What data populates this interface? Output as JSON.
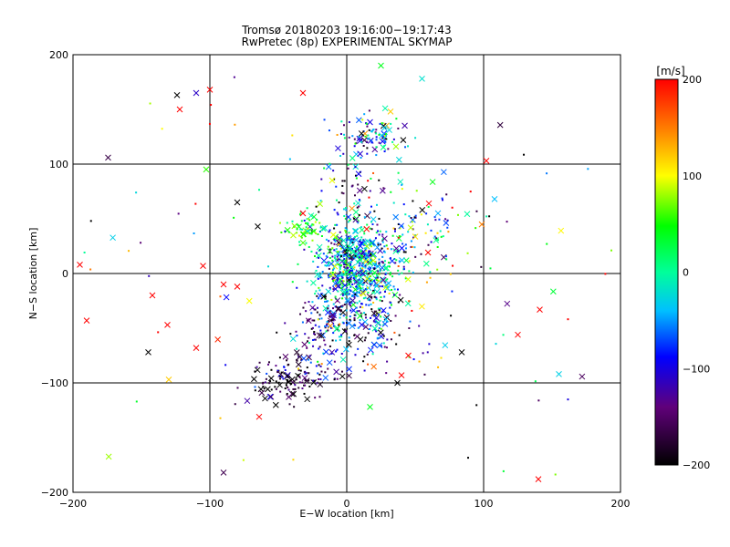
{
  "chart_data": {
    "type": "scatter",
    "title": "Tromsø 20180203 19:16:00−19:17:43",
    "subtitle": "RwPretec (8p) EXPERIMENTAL SKYMAP",
    "xlabel": "E−W location [km]",
    "ylabel": "N−S location [km]",
    "xlim": [
      -200,
      200
    ],
    "ylim": [
      -200,
      200
    ],
    "x_ticks": [
      "−200",
      "−100",
      "0",
      "100",
      "200"
    ],
    "y_ticks": [
      "−200",
      "−100",
      "0",
      "100",
      "200"
    ],
    "grid": true,
    "colorbar": {
      "label": "[m/s]",
      "range": [
        -200,
        200
      ],
      "ticks": [
        "200",
        "100",
        "0",
        "−100",
        "−200"
      ],
      "colormap": "black-purple-blue-cyan-green-yellow-red"
    },
    "clusters": [
      {
        "x": 5,
        "y": 5,
        "sx": 14,
        "sy": 20,
        "n": 650,
        "vmean": -40,
        "vspread": 70
      },
      {
        "x": 20,
        "y": 125,
        "sx": 12,
        "sy": 8,
        "n": 90,
        "vmean": -50,
        "vspread": 80
      },
      {
        "x": -42,
        "y": -97,
        "sx": 13,
        "sy": 10,
        "n": 130,
        "vmean": -175,
        "vspread": 45
      },
      {
        "x": -15,
        "y": -50,
        "sx": 15,
        "sy": 18,
        "n": 140,
        "vmean": -120,
        "vspread": 70
      },
      {
        "x": 20,
        "y": -45,
        "sx": 16,
        "sy": 16,
        "n": 110,
        "vmean": -110,
        "vspread": 80
      },
      {
        "x": 45,
        "y": 35,
        "sx": 22,
        "sy": 22,
        "n": 130,
        "vmean": -20,
        "vspread": 110
      },
      {
        "x": 0,
        "y": 80,
        "sx": 15,
        "sy": 22,
        "n": 70,
        "vmean": -100,
        "vspread": 90
      },
      {
        "x": -30,
        "y": 40,
        "sx": 8,
        "sy": 6,
        "n": 60,
        "vmean": 40,
        "vspread": 30
      },
      {
        "x": 0,
        "y": 0,
        "sx": 110,
        "sy": 110,
        "n": 130,
        "vmean": 0,
        "vspread": 170
      }
    ],
    "highlighted_points": [
      {
        "x": -195,
        "y": 8,
        "v": 200
      },
      {
        "x": -122,
        "y": 150,
        "v": 200
      },
      {
        "x": -124,
        "y": 163,
        "v": -200
      },
      {
        "x": -100,
        "y": 168,
        "v": 200
      },
      {
        "x": -110,
        "y": 165,
        "v": -110
      },
      {
        "x": -142,
        "y": -20,
        "v": 200
      },
      {
        "x": -131,
        "y": -47,
        "v": 200
      },
      {
        "x": -145,
        "y": -72,
        "v": -200
      },
      {
        "x": -110,
        "y": -68,
        "v": 200
      },
      {
        "x": -130,
        "y": -97,
        "v": 120
      },
      {
        "x": -105,
        "y": 7,
        "v": 200
      },
      {
        "x": -90,
        "y": -10,
        "v": 200
      },
      {
        "x": -80,
        "y": -12,
        "v": 200
      },
      {
        "x": -80,
        "y": 65,
        "v": -200
      },
      {
        "x": -64,
        "y": -131,
        "v": 200
      },
      {
        "x": -90,
        "y": -182,
        "v": -160
      },
      {
        "x": -65,
        "y": 43,
        "v": -200
      },
      {
        "x": -32,
        "y": 55,
        "v": 200
      },
      {
        "x": 32,
        "y": 148,
        "v": 120
      },
      {
        "x": 25,
        "y": 190,
        "v": 40
      },
      {
        "x": 55,
        "y": 178,
        "v": -20
      },
      {
        "x": 102,
        "y": 103,
        "v": 200
      },
      {
        "x": 108,
        "y": 68,
        "v": -40
      },
      {
        "x": -32,
        "y": 165,
        "v": 200
      },
      {
        "x": 60,
        "y": 64,
        "v": 200
      },
      {
        "x": 45,
        "y": -75,
        "v": 200
      },
      {
        "x": 40,
        "y": -93,
        "v": 200
      },
      {
        "x": 37,
        "y": -100,
        "v": -200
      },
      {
        "x": 84,
        "y": -72,
        "v": -200
      },
      {
        "x": 125,
        "y": -56,
        "v": 200
      },
      {
        "x": 141,
        "y": -33,
        "v": 200
      },
      {
        "x": 155,
        "y": -92,
        "v": -30
      },
      {
        "x": 140,
        "y": -188,
        "v": 200
      },
      {
        "x": 17,
        "y": -122,
        "v": 40
      },
      {
        "x": -190,
        "y": -43,
        "v": 200
      }
    ]
  }
}
